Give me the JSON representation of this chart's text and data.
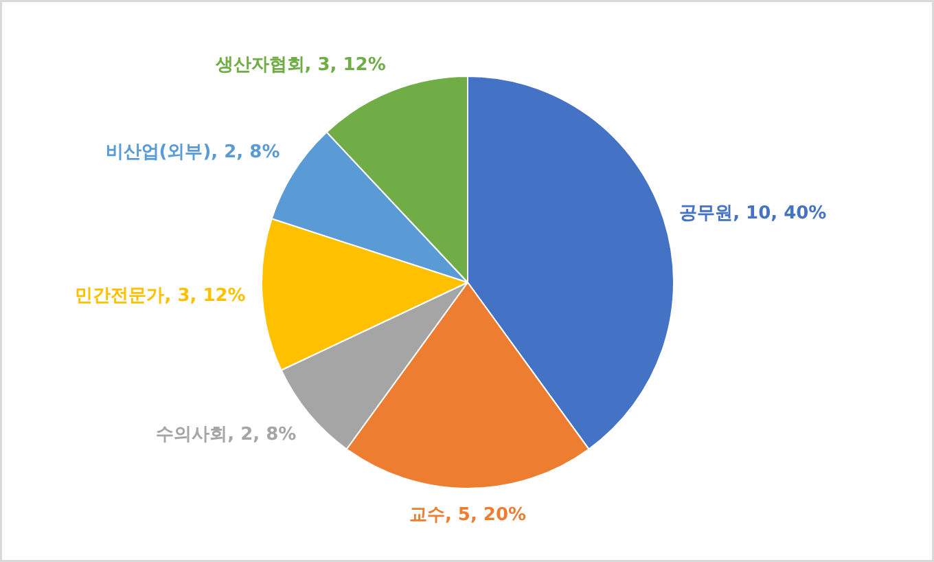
{
  "chart_data": {
    "type": "pie",
    "categories": [
      "공무원",
      "교수",
      "수의사회",
      "민간전문가",
      "비산업(외부)",
      "생산자협회"
    ],
    "values": [
      10,
      5,
      2,
      3,
      2,
      3
    ],
    "value_labels": [
      "10, 40%",
      "5, 20%",
      "2, 8%",
      "3, 12%",
      "2, 8%",
      "3, 12%"
    ],
    "colors": [
      "#4472c4",
      "#ed7d31",
      "#a5a5a5",
      "#ffc000",
      "#5b9bd5",
      "#70ad47"
    ]
  }
}
